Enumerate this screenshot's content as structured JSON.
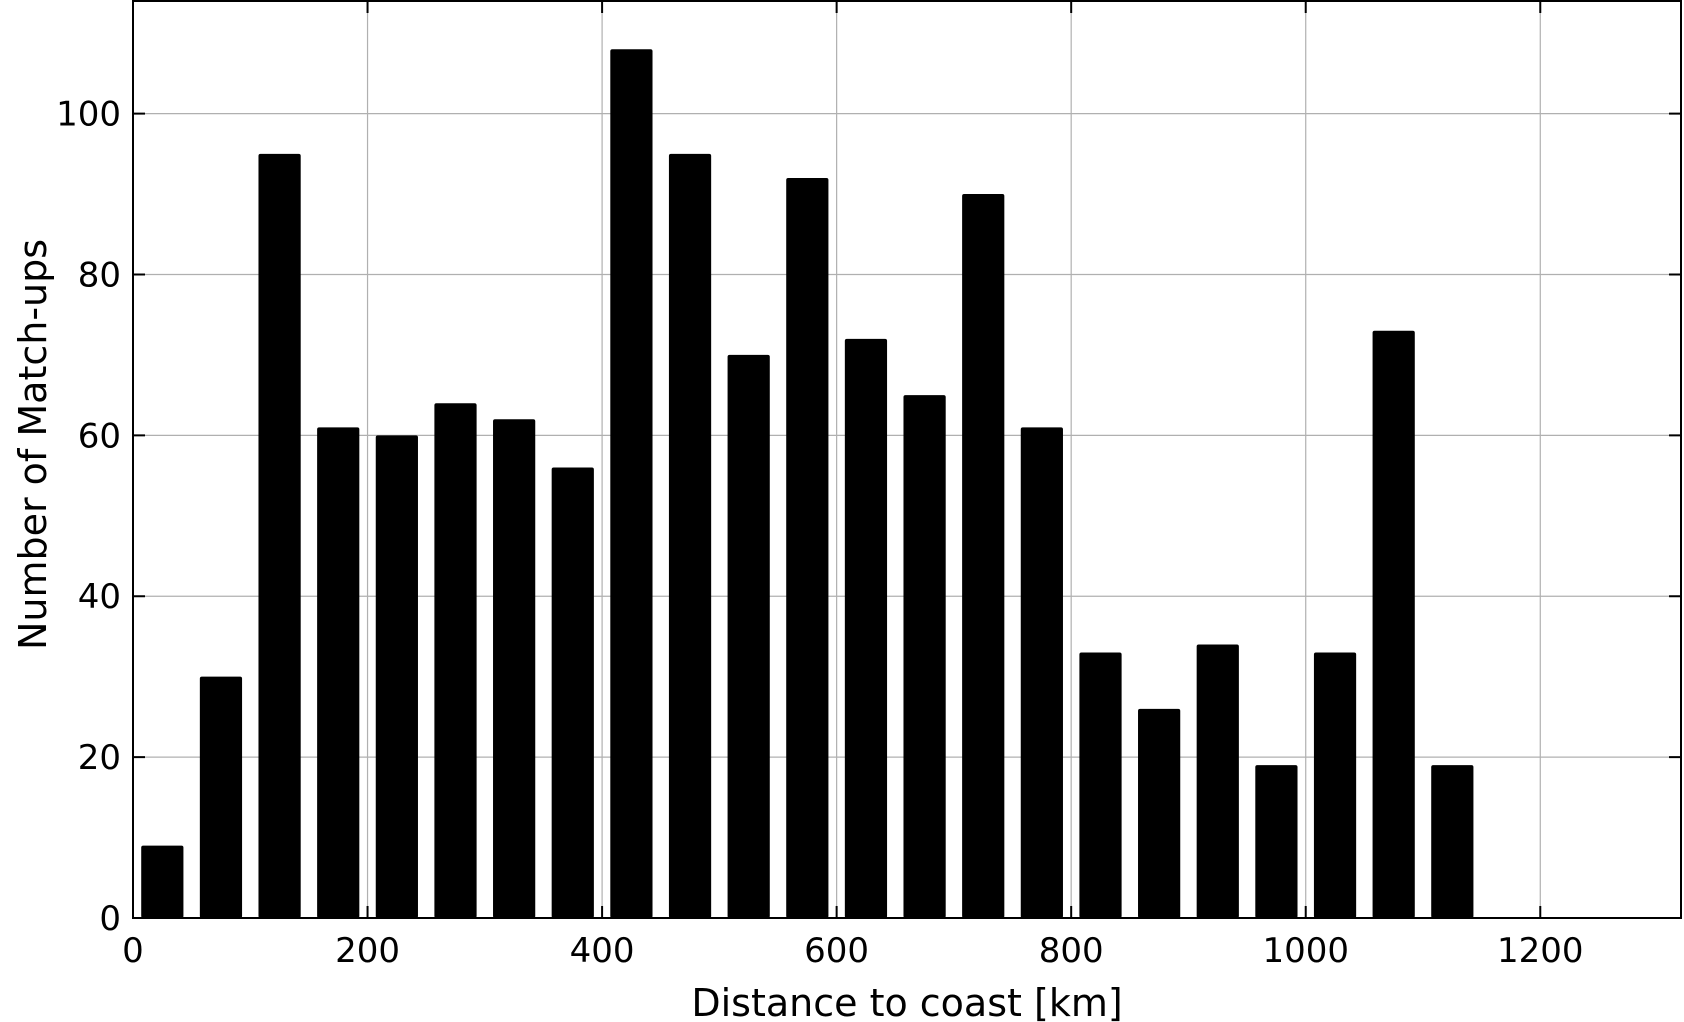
{
  "chart_data": {
    "type": "bar",
    "xlabel": "Distance to coast [km]",
    "ylabel": "Number of Match-ups",
    "xlim": [
      0,
      1320
    ],
    "ylim": [
      0,
      114
    ],
    "grid": true,
    "bar_color": "#000000",
    "bin_width_km": 50,
    "bar_width_km": 36,
    "x": [
      25,
      75,
      125,
      175,
      225,
      275,
      325,
      375,
      425,
      475,
      525,
      575,
      625,
      675,
      725,
      775,
      825,
      875,
      925,
      975,
      1025,
      1075,
      1125
    ],
    "values": [
      9,
      30,
      95,
      61,
      60,
      64,
      62,
      56,
      108,
      95,
      70,
      92,
      72,
      65,
      90,
      61,
      33,
      26,
      34,
      19,
      33,
      73,
      19
    ],
    "xticks": [
      0,
      200,
      400,
      600,
      800,
      1000,
      1200
    ],
    "xtick_labels": [
      "0",
      "200",
      "400",
      "600",
      "800",
      "1000",
      "1200"
    ],
    "yticks": [
      0,
      20,
      40,
      60,
      80,
      100
    ],
    "ytick_labels": [
      "0",
      "20",
      "40",
      "60",
      "80",
      "100"
    ]
  }
}
